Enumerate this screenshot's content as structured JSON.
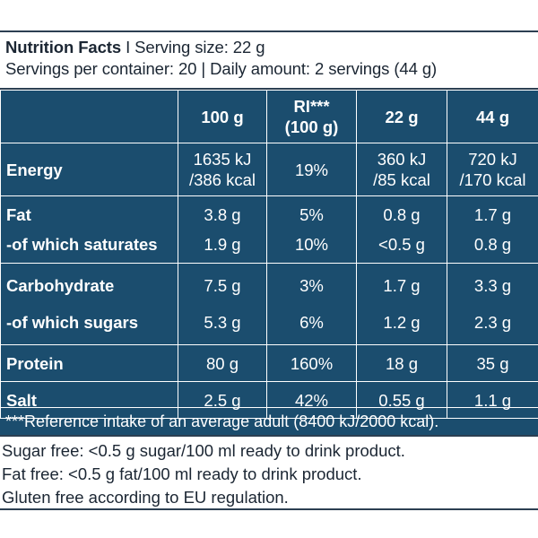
{
  "header": {
    "title": "Nutrition Facts",
    "sep": " I ",
    "serving_size": "Serving size: 22 g",
    "line2": "Servings per container: 20 | Daily amount: 2 servings (44 g)"
  },
  "columns": {
    "c1": "100 g",
    "c2_line1": "RI***",
    "c2_line2": "(100 g)",
    "c3": "22 g",
    "c4": "44 g"
  },
  "rows": {
    "energy": {
      "label": "Energy",
      "v1a": "1635 kJ",
      "v1b": "/386 kcal",
      "v2": "19%",
      "v3a": "360 kJ",
      "v3b": "/85 kcal",
      "v4a": "720 kJ",
      "v4b": "/170 kcal"
    },
    "fat": {
      "label": "Fat",
      "v1": "3.8 g",
      "v2": "5%",
      "v3": "0.8 g",
      "v4": "1.7 g"
    },
    "saturates": {
      "label": "-of which saturates",
      "v1": "1.9 g",
      "v2": "10%",
      "v3": "<0.5 g",
      "v4": "0.8 g"
    },
    "carb": {
      "label": "Carbohydrate",
      "v1": "7.5 g",
      "v2": "3%",
      "v3": "1.7 g",
      "v4": "3.3 g"
    },
    "sugars": {
      "label": "-of which sugars",
      "v1": "5.3 g",
      "v2": "6%",
      "v3": "1.2 g",
      "v4": "2.3 g"
    },
    "protein": {
      "label": "Protein",
      "v1": "80 g",
      "v2": "160%",
      "v3": "18 g",
      "v4": "35 g"
    },
    "salt": {
      "label": "Salt",
      "v1": "2.5 g",
      "v2": "42%",
      "v3": "0.55 g",
      "v4": "1.1 g"
    }
  },
  "footnote": "***Reference intake of an average adult (8400 kJ/2000 kcal).",
  "notes": [
    "Sugar free: <0.5 g sugar/100 ml ready to drink product.",
    "Fat free: <0.5 g fat/100 ml ready to drink product.",
    "Gluten free according to EU regulation."
  ],
  "colors": {
    "panel": "#1b4d6e",
    "text_dark": "#1b2633"
  }
}
